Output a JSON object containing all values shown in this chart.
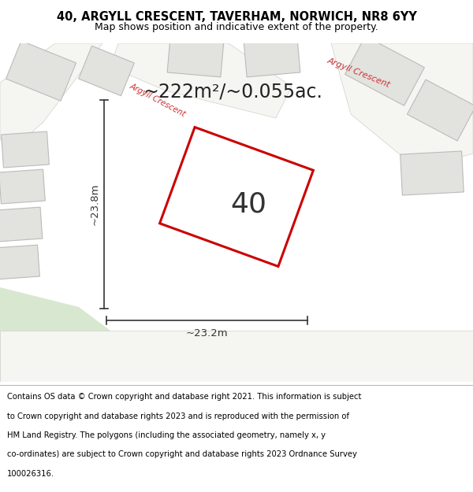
{
  "title_line1": "40, ARGYLL CRESCENT, TAVERHAM, NORWICH, NR8 6YY",
  "title_line2": "Map shows position and indicative extent of the property.",
  "area_text": "~222m²/~0.055ac.",
  "plot_number": "40",
  "dim_width": "~23.2m",
  "dim_height": "~23.8m",
  "footer_lines": [
    "Contains OS data © Crown copyright and database right 2021. This information is subject",
    "to Crown copyright and database rights 2023 and is reproduced with the permission of",
    "HM Land Registry. The polygons (including the associated geometry, namely x, y",
    "co-ordinates) are subject to Crown copyright and database rights 2023 Ordnance Survey",
    "100026316."
  ],
  "map_bg_color": "#eeeee8",
  "green_color": "#d8e8d0",
  "road_color": "#f5f5f2",
  "road_edge": "#d0d0cc",
  "building_fill": "#e2e2de",
  "building_stroke": "#bbbbbb",
  "plot_fill": "#ffffff",
  "plot_stroke": "#cc0000",
  "road_label_color": "#cc3333",
  "dim_line_color": "#333333",
  "title_bg": "#ffffff",
  "footer_bg": "#ffffff"
}
